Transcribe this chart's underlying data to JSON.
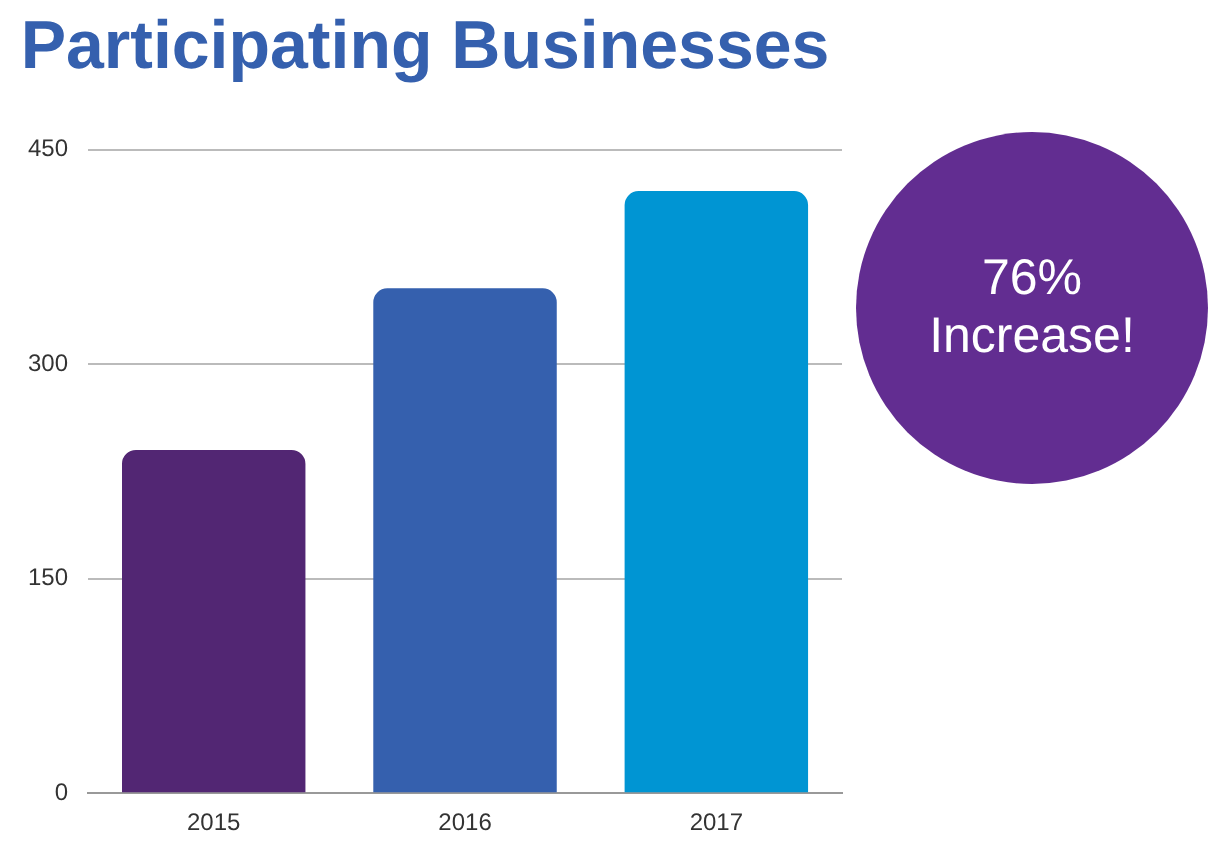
{
  "chart_data": {
    "type": "bar",
    "title": "Participating Businesses",
    "categories": [
      "2015",
      "2016",
      "2017"
    ],
    "values": [
      240,
      353,
      421
    ],
    "colors": [
      "#522673",
      "#3560ae",
      "#0095d3"
    ],
    "ylim": [
      0,
      450
    ],
    "yticks": [
      0,
      150,
      300,
      450
    ],
    "grid": "y",
    "legend": false,
    "annotations": [
      "76% Increase!"
    ]
  }
}
